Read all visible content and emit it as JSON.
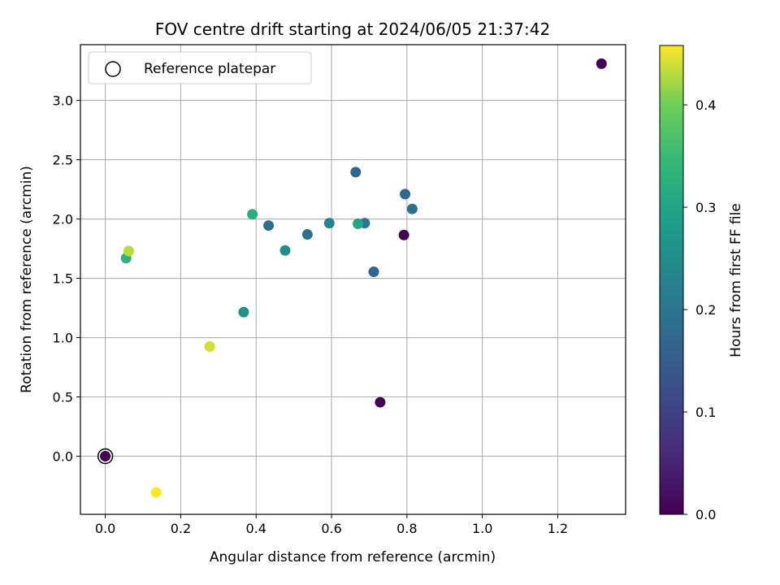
{
  "chart_data": {
    "type": "scatter",
    "title": "FOV centre drift starting at 2024/06/05 21:37:42",
    "xlabel": "Angular distance from reference (arcmin)",
    "ylabel": "Rotation from reference (arcmin)",
    "xlim": [
      -0.066,
      1.38
    ],
    "ylim": [
      -0.49,
      3.47
    ],
    "xticks": [
      0.0,
      0.2,
      0.4,
      0.6,
      0.8,
      1.0,
      1.2
    ],
    "xtick_labels": [
      "0.0",
      "0.2",
      "0.4",
      "0.6",
      "0.8",
      "1.0",
      "1.2"
    ],
    "yticks": [
      0.0,
      0.5,
      1.0,
      1.5,
      2.0,
      2.5,
      3.0
    ],
    "ytick_labels": [
      "0.0",
      "0.5",
      "1.0",
      "1.5",
      "2.0",
      "2.5",
      "3.0"
    ],
    "grid": true,
    "legend": {
      "position": "top-left",
      "entries": [
        "Reference platepar"
      ]
    },
    "colorbar": {
      "label": "Hours from first FF file",
      "range": [
        0.0,
        0.458
      ],
      "ticks": [
        0.0,
        0.1,
        0.2,
        0.3,
        0.4
      ],
      "tick_labels": [
        "0.0",
        "0.1",
        "0.2",
        "0.3",
        "0.4"
      ],
      "colormap": "viridis"
    },
    "reference_point": {
      "x": 0.0,
      "y": 0.0
    },
    "points": [
      {
        "x": 0.0,
        "y": 0.0,
        "hours": 0.0
      },
      {
        "x": 1.316,
        "y": 3.31,
        "hours": 0.0
      },
      {
        "x": 0.792,
        "y": 1.865,
        "hours": 0.0
      },
      {
        "x": 0.729,
        "y": 0.455,
        "hours": 0.0
      },
      {
        "x": 0.664,
        "y": 2.395,
        "hours": 0.17
      },
      {
        "x": 0.795,
        "y": 2.21,
        "hours": 0.17
      },
      {
        "x": 0.814,
        "y": 2.085,
        "hours": 0.19
      },
      {
        "x": 0.712,
        "y": 1.555,
        "hours": 0.17
      },
      {
        "x": 0.688,
        "y": 1.965,
        "hours": 0.2
      },
      {
        "x": 0.433,
        "y": 1.945,
        "hours": 0.18
      },
      {
        "x": 0.536,
        "y": 1.87,
        "hours": 0.19
      },
      {
        "x": 0.594,
        "y": 1.965,
        "hours": 0.23
      },
      {
        "x": 0.477,
        "y": 1.735,
        "hours": 0.25
      },
      {
        "x": 0.367,
        "y": 1.215,
        "hours": 0.26
      },
      {
        "x": 0.67,
        "y": 1.96,
        "hours": 0.3
      },
      {
        "x": 0.39,
        "y": 2.04,
        "hours": 0.32
      },
      {
        "x": 0.055,
        "y": 1.67,
        "hours": 0.33
      },
      {
        "x": 0.062,
        "y": 1.73,
        "hours": 0.43
      },
      {
        "x": 0.277,
        "y": 0.925,
        "hours": 0.44
      },
      {
        "x": 0.135,
        "y": -0.305,
        "hours": 0.458
      }
    ]
  }
}
